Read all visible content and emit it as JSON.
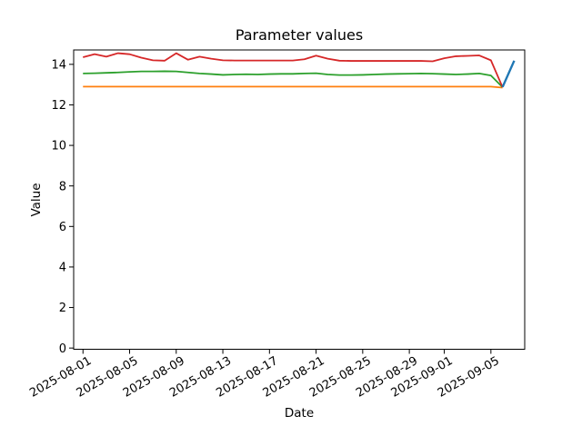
{
  "figure": {
    "title": "Parameter values",
    "xlabel": "Date",
    "ylabel": "Value"
  },
  "chart_data": {
    "type": "line",
    "title": "Parameter values",
    "xlabel": "Date",
    "ylabel": "Value",
    "grid": false,
    "legend": "none",
    "x_dates": [
      "2025-08-01",
      "2025-08-02",
      "2025-08-03",
      "2025-08-04",
      "2025-08-05",
      "2025-08-06",
      "2025-08-07",
      "2025-08-08",
      "2025-08-09",
      "2025-08-10",
      "2025-08-11",
      "2025-08-12",
      "2025-08-13",
      "2025-08-14",
      "2025-08-15",
      "2025-08-16",
      "2025-08-17",
      "2025-08-18",
      "2025-08-19",
      "2025-08-20",
      "2025-08-21",
      "2025-08-22",
      "2025-08-23",
      "2025-08-24",
      "2025-08-25",
      "2025-08-26",
      "2025-08-27",
      "2025-08-28",
      "2025-08-29",
      "2025-08-30",
      "2025-08-31",
      "2025-09-01",
      "2025-09-02",
      "2025-09-03",
      "2025-09-04",
      "2025-09-05",
      "2025-09-06",
      "2025-09-07"
    ],
    "series": [
      {
        "name": "orange",
        "color": "#ff7f0e",
        "line_width": 1.8,
        "values": [
          12.9,
          12.9,
          12.9,
          12.9,
          12.9,
          12.9,
          12.9,
          12.9,
          12.9,
          12.9,
          12.9,
          12.9,
          12.9,
          12.9,
          12.9,
          12.9,
          12.9,
          12.9,
          12.9,
          12.9,
          12.9,
          12.9,
          12.9,
          12.9,
          12.9,
          12.9,
          12.9,
          12.9,
          12.9,
          12.9,
          12.9,
          12.9,
          12.9,
          12.9,
          12.9,
          12.9,
          12.85,
          null
        ]
      },
      {
        "name": "green",
        "color": "#2ca02c",
        "line_width": 1.8,
        "values": [
          13.55,
          13.56,
          13.58,
          13.6,
          13.63,
          13.65,
          13.65,
          13.66,
          13.65,
          13.6,
          13.55,
          13.52,
          13.48,
          13.5,
          13.51,
          13.5,
          13.52,
          13.53,
          13.53,
          13.55,
          13.56,
          13.5,
          13.47,
          13.47,
          13.48,
          13.5,
          13.52,
          13.53,
          13.54,
          13.55,
          13.54,
          13.52,
          13.5,
          13.52,
          13.55,
          13.45,
          12.87,
          null
        ]
      },
      {
        "name": "red",
        "color": "#d62728",
        "line_width": 1.8,
        "values": [
          14.35,
          14.5,
          14.38,
          14.55,
          14.5,
          14.33,
          14.2,
          14.18,
          14.55,
          14.23,
          14.38,
          14.28,
          14.2,
          14.19,
          14.19,
          14.19,
          14.19,
          14.19,
          14.19,
          14.25,
          14.43,
          14.28,
          14.18,
          14.17,
          14.17,
          14.17,
          14.17,
          14.17,
          14.17,
          14.17,
          14.15,
          14.3,
          14.4,
          14.42,
          14.44,
          14.2,
          12.87,
          null
        ]
      },
      {
        "name": "blue",
        "color": "#1f77b4",
        "line_width": 2.4,
        "values": [
          null,
          null,
          null,
          null,
          null,
          null,
          null,
          null,
          null,
          null,
          null,
          null,
          null,
          null,
          null,
          null,
          null,
          null,
          null,
          null,
          null,
          null,
          null,
          null,
          null,
          null,
          null,
          null,
          null,
          null,
          null,
          null,
          null,
          null,
          null,
          null,
          12.88,
          14.18
        ]
      }
    ],
    "x_ticks": [
      {
        "offset": 0,
        "label": "2025-08-01"
      },
      {
        "offset": 4,
        "label": "2025-08-05"
      },
      {
        "offset": 8,
        "label": "2025-08-09"
      },
      {
        "offset": 12,
        "label": "2025-08-13"
      },
      {
        "offset": 16,
        "label": "2025-08-17"
      },
      {
        "offset": 20,
        "label": "2025-08-21"
      },
      {
        "offset": 24,
        "label": "2025-08-25"
      },
      {
        "offset": 28,
        "label": "2025-08-29"
      },
      {
        "offset": 31,
        "label": "2025-09-01"
      },
      {
        "offset": 35,
        "label": "2025-09-05"
      }
    ],
    "y_ticks": [
      0,
      2,
      4,
      6,
      8,
      10,
      12,
      14
    ],
    "xlim_days": [
      -0.8,
      37.9
    ],
    "ylim": [
      -0.06,
      14.71
    ],
    "x_tick_rotation_deg": -30
  }
}
